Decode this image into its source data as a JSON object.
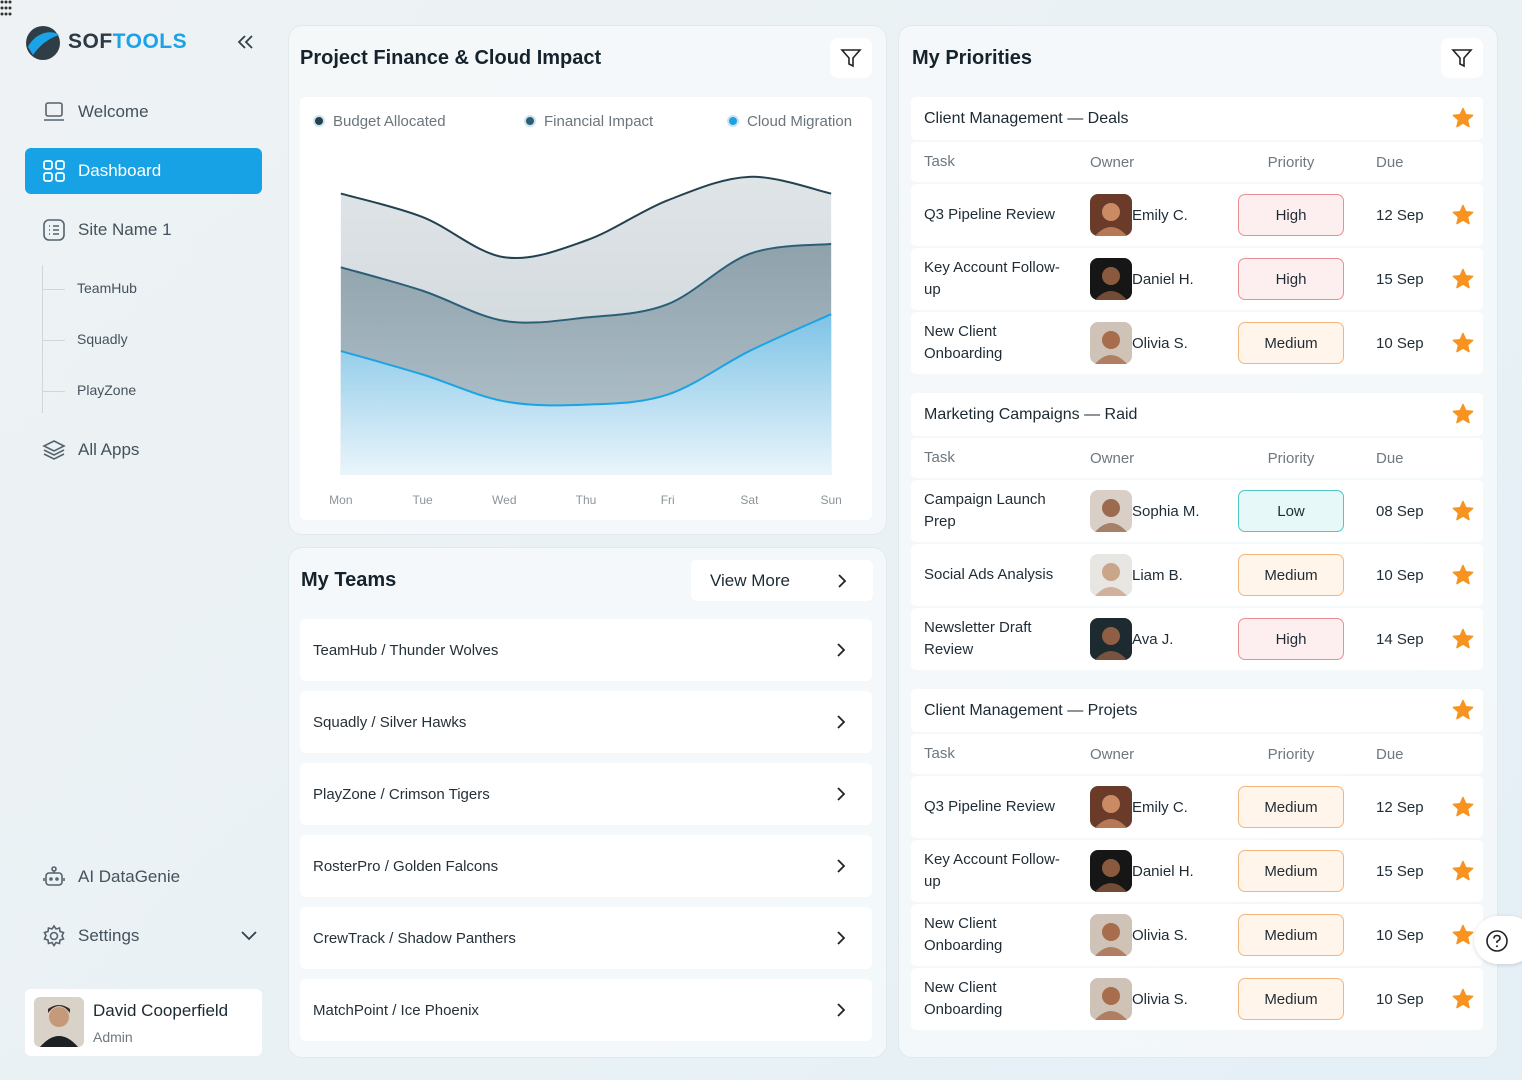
{
  "brand": {
    "first": "SOF",
    "second": "TOOLS"
  },
  "nav": {
    "welcome": "Welcome",
    "dashboard": "Dashboard",
    "site": "Site Name 1",
    "sites": [
      "TeamHub",
      "Squadly",
      "PlayZone"
    ],
    "all_apps": "All Apps",
    "ai": "AI DataGenie",
    "settings": "Settings"
  },
  "user": {
    "name": "David Cooperfield",
    "role": "Admin"
  },
  "finance": {
    "title": "Project Finance & Cloud Impact",
    "chart_data": {
      "type": "area",
      "categories": [
        "Mon",
        "Tue",
        "Wed",
        "Thu",
        "Fri",
        "Sat",
        "Sun"
      ],
      "ylim": [
        0,
        100
      ],
      "series": [
        {
          "name": "Budget Allocated",
          "color": "#23414f",
          "values": [
            84,
            77,
            65,
            70,
            82,
            89,
            84
          ]
        },
        {
          "name": "Financial Impact",
          "color": "#2b5f78",
          "values": [
            62,
            55,
            46,
            47,
            51,
            66,
            69
          ]
        },
        {
          "name": "Cloud Migration",
          "color": "#1ba3e3",
          "values": [
            37,
            30,
            22,
            21,
            24,
            37,
            48
          ]
        }
      ]
    }
  },
  "teams": {
    "title": "My Teams",
    "view_more": "View More",
    "items": [
      "TeamHub / Thunder Wolves",
      "Squadly / Silver Hawks",
      "PlayZone / Crimson Tigers",
      "RosterPro / Golden Falcons",
      "CrewTrack / Shadow Panthers",
      "MatchPoint / Ice Phoenix"
    ]
  },
  "priorities": {
    "title": "My Priorities",
    "groups": [
      {
        "name": "Client Management — Deals",
        "headers": [
          "Task",
          "Owner",
          "Priority",
          "Due"
        ],
        "rows": [
          [
            "Q3 Pipeline Review",
            "Emily C.",
            "High",
            "12 Sep"
          ],
          [
            "Key Account Follow-up",
            "Daniel H.",
            "High",
            "15 Sep"
          ],
          [
            "New Client Onboarding",
            "Olivia S.",
            "Medium",
            "10 Sep"
          ]
        ]
      },
      {
        "name": "Marketing Campaigns — Raid",
        "headers": [
          "Task",
          "Owner",
          "Priority",
          "Due"
        ],
        "rows": [
          [
            "Campaign Launch Prep",
            "Sophia M.",
            "Low",
            "08 Sep"
          ],
          [
            "Social Ads Analysis",
            "Liam B.",
            "Medium",
            "10 Sep"
          ],
          [
            "Newsletter Draft Review",
            "Ava J.",
            "High",
            "14 Sep"
          ]
        ]
      },
      {
        "name": "Client Management — Projets",
        "headers": [
          "Task",
          "Owner",
          "Priority",
          "Due"
        ],
        "rows": [
          [
            "Q3 Pipeline Review",
            "Emily C.",
            "Medium",
            "12 Sep"
          ],
          [
            "Key Account Follow-up",
            "Daniel H.",
            "Medium",
            "15 Sep"
          ],
          [
            "New Client Onboarding",
            "Olivia S.",
            "Medium",
            "10 Sep"
          ],
          [
            "New Client Onboarding",
            "Olivia S.",
            "Medium",
            "10 Sep"
          ]
        ]
      }
    ]
  }
}
